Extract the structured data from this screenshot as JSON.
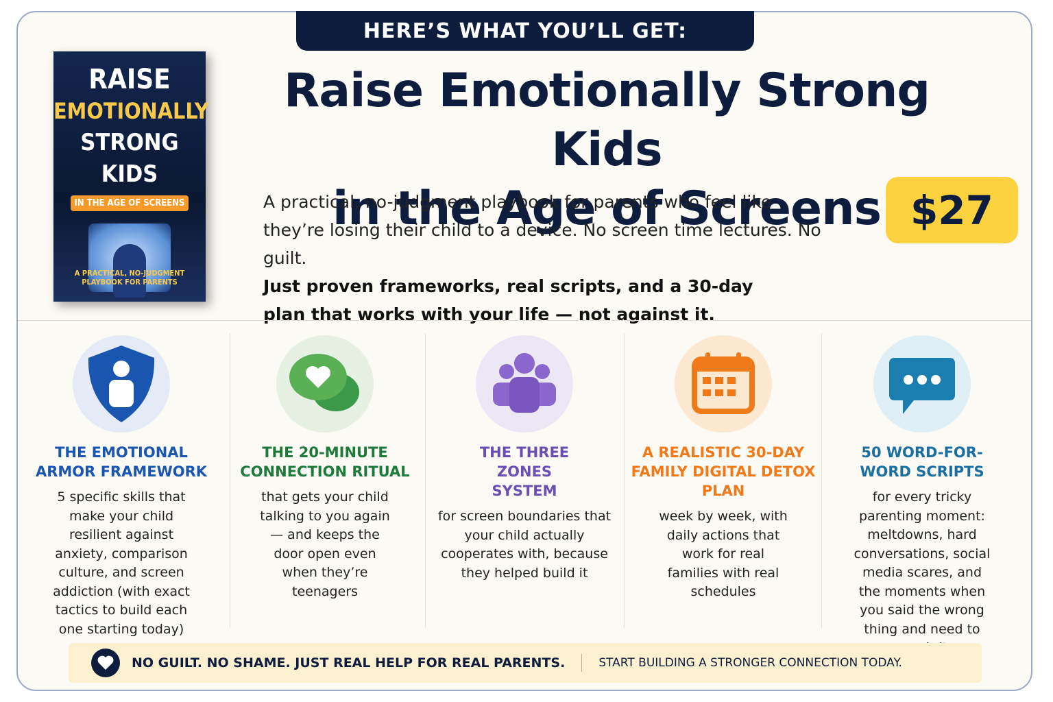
{
  "header": {
    "banner": "HERE’S WHAT YOU’LL GET:",
    "title_lines": [
      "Raise Emotionally Strong Kids",
      "in the Age of Screens"
    ],
    "description": "A practical, no-judgment playbook for parents who feel like they’re losing their child to a device. No screen time lectures. No guilt.",
    "description_bold": "Just proven frameworks, real scripts, and a 30-day plan that works with your life — not against it.",
    "price": "$27"
  },
  "book": {
    "line1": "RAISE",
    "line2": "EMOTIONALLY",
    "line3": "STRONG KIDS",
    "badge": "IN THE AGE OF SCREENS",
    "tagline": "A PRACTICAL, NO-JUDGMENT PLAYBOOK FOR PARENTS"
  },
  "features": [
    {
      "title": "THE EMOTIONAL ARMOR FRAMEWORK",
      "body": "5 specific skills that make your child resilient against anxiety, comparison culture, and screen addiction (with exact tactics to build each one starting today)"
    },
    {
      "title": "THE 20-MINUTE CONNECTION RITUAL",
      "body": "that gets your child talking to you again — and keeps the door open even when they’re teenagers"
    },
    {
      "title": "THE THREE ZONES SYSTEM",
      "body": "for screen boundaries that your child actually cooperates with, because they helped build it"
    },
    {
      "title": "A REALISTIC 30-DAY FAMILY DIGITAL DETOX PLAN",
      "body": "week by week, with daily actions that work for real families with real schedules"
    },
    {
      "title": "50 WORD-FOR-WORD SCRIPTS",
      "body": "for every tricky parenting moment: meltdowns, hard conversations, social media scares, and the moments when you said the wrong thing and need to repair it"
    }
  ],
  "footer": {
    "left": "NO GUILT. NO SHAME. JUST REAL HELP FOR REAL PARENTS.",
    "right": "START BUILDING A STRONGER CONNECTION TODAY."
  }
}
